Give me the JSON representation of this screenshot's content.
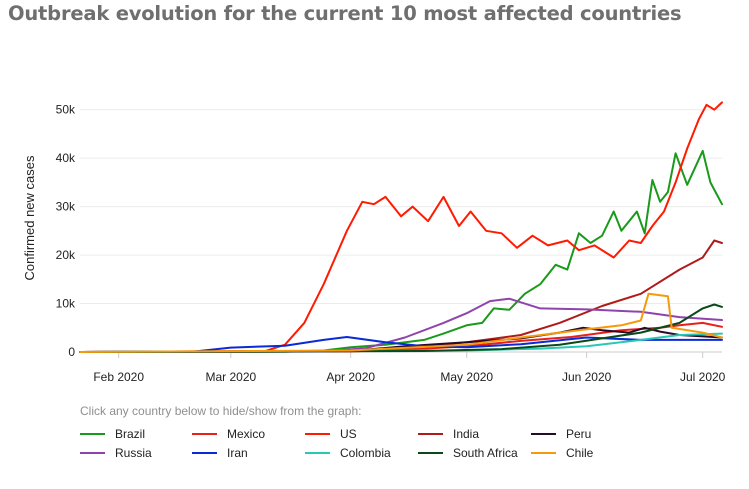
{
  "title": "Outbreak evolution for the current 10 most affected countries",
  "hint": "Click any country below to hide/show from the graph:",
  "chart_data": {
    "type": "line",
    "ylabel": "Confirmed new cases",
    "xlabel": "",
    "ylim": [
      0,
      52000
    ],
    "y_ticks": [
      0,
      10000,
      20000,
      30000,
      40000,
      50000
    ],
    "y_tick_labels": [
      "0",
      "10k",
      "20k",
      "30k",
      "40k",
      "50k"
    ],
    "x_start": "2020-01-22",
    "x_end": "2020-07-06",
    "x_ticks": [
      "2020-02-01",
      "2020-03-01",
      "2020-04-01",
      "2020-05-01",
      "2020-06-01",
      "2020-07-01"
    ],
    "x_tick_labels": [
      "Feb 2020",
      "Mar 2020",
      "Apr 2020",
      "May 2020",
      "Jun 2020",
      "Jul 2020"
    ],
    "grid": "horizontal",
    "legend_position": "bottom",
    "series": [
      {
        "name": "Brazil",
        "color": "#1a9a1a",
        "points": [
          [
            "2020-01-22",
            0
          ],
          [
            "2020-03-15",
            50
          ],
          [
            "2020-03-25",
            300
          ],
          [
            "2020-04-01",
            1000
          ],
          [
            "2020-04-10",
            1500
          ],
          [
            "2020-04-20",
            2500
          ],
          [
            "2020-04-25",
            3800
          ],
          [
            "2020-05-01",
            5500
          ],
          [
            "2020-05-05",
            6000
          ],
          [
            "2020-05-08",
            9000
          ],
          [
            "2020-05-12",
            8700
          ],
          [
            "2020-05-16",
            12000
          ],
          [
            "2020-05-20",
            14000
          ],
          [
            "2020-05-24",
            18000
          ],
          [
            "2020-05-27",
            17000
          ],
          [
            "2020-05-30",
            24500
          ],
          [
            "2020-06-02",
            22500
          ],
          [
            "2020-06-05",
            24000
          ],
          [
            "2020-06-08",
            29000
          ],
          [
            "2020-06-10",
            25000
          ],
          [
            "2020-06-14",
            29000
          ],
          [
            "2020-06-16",
            24500
          ],
          [
            "2020-06-18",
            35500
          ],
          [
            "2020-06-20",
            31000
          ],
          [
            "2020-06-22",
            33000
          ],
          [
            "2020-06-24",
            41000
          ],
          [
            "2020-06-27",
            34500
          ],
          [
            "2020-07-01",
            41500
          ],
          [
            "2020-07-03",
            35000
          ],
          [
            "2020-07-06",
            30500
          ]
        ]
      },
      {
        "name": "Mexico",
        "color": "#e8201a",
        "points": [
          [
            "2020-01-22",
            0
          ],
          [
            "2020-04-01",
            100
          ],
          [
            "2020-04-20",
            700
          ],
          [
            "2020-05-01",
            1200
          ],
          [
            "2020-05-15",
            2300
          ],
          [
            "2020-05-28",
            3100
          ],
          [
            "2020-06-10",
            4500
          ],
          [
            "2020-06-20",
            5000
          ],
          [
            "2020-06-25",
            5500
          ],
          [
            "2020-07-01",
            6000
          ],
          [
            "2020-07-06",
            5200
          ]
        ]
      },
      {
        "name": "US",
        "color": "#ff1a00",
        "points": [
          [
            "2020-01-22",
            0
          ],
          [
            "2020-03-10",
            200
          ],
          [
            "2020-03-15",
            1500
          ],
          [
            "2020-03-20",
            6000
          ],
          [
            "2020-03-25",
            14000
          ],
          [
            "2020-03-31",
            25000
          ],
          [
            "2020-04-04",
            31000
          ],
          [
            "2020-04-07",
            30500
          ],
          [
            "2020-04-10",
            32000
          ],
          [
            "2020-04-14",
            28000
          ],
          [
            "2020-04-17",
            30000
          ],
          [
            "2020-04-21",
            27000
          ],
          [
            "2020-04-25",
            32000
          ],
          [
            "2020-04-29",
            26000
          ],
          [
            "2020-05-02",
            29000
          ],
          [
            "2020-05-06",
            25000
          ],
          [
            "2020-05-10",
            24500
          ],
          [
            "2020-05-14",
            21500
          ],
          [
            "2020-05-18",
            24000
          ],
          [
            "2020-05-22",
            22000
          ],
          [
            "2020-05-27",
            23000
          ],
          [
            "2020-05-30",
            21000
          ],
          [
            "2020-06-03",
            22000
          ],
          [
            "2020-06-08",
            19500
          ],
          [
            "2020-06-12",
            23000
          ],
          [
            "2020-06-15",
            22500
          ],
          [
            "2020-06-18",
            26000
          ],
          [
            "2020-06-21",
            29000
          ],
          [
            "2020-06-24",
            35000
          ],
          [
            "2020-06-27",
            42000
          ],
          [
            "2020-06-30",
            48000
          ],
          [
            "2020-07-02",
            51000
          ],
          [
            "2020-07-04",
            50000
          ],
          [
            "2020-07-06",
            51500
          ]
        ]
      },
      {
        "name": "India",
        "color": "#b01a1a",
        "points": [
          [
            "2020-01-22",
            0
          ],
          [
            "2020-04-01",
            200
          ],
          [
            "2020-04-15",
            800
          ],
          [
            "2020-05-01",
            2000
          ],
          [
            "2020-05-15",
            3500
          ],
          [
            "2020-05-25",
            6000
          ],
          [
            "2020-06-05",
            9500
          ],
          [
            "2020-06-15",
            12000
          ],
          [
            "2020-06-25",
            17000
          ],
          [
            "2020-07-01",
            19500
          ],
          [
            "2020-07-04",
            23000
          ],
          [
            "2020-07-06",
            22500
          ]
        ]
      },
      {
        "name": "Peru",
        "color": "#2a0a2a",
        "points": [
          [
            "2020-01-22",
            0
          ],
          [
            "2020-04-01",
            200
          ],
          [
            "2020-04-15",
            1200
          ],
          [
            "2020-05-01",
            2000
          ],
          [
            "2020-05-15",
            2800
          ],
          [
            "2020-05-25",
            4000
          ],
          [
            "2020-05-31",
            5000
          ],
          [
            "2020-06-05",
            4500
          ],
          [
            "2020-06-12",
            4000
          ],
          [
            "2020-06-16",
            5000
          ],
          [
            "2020-06-20",
            4200
          ],
          [
            "2020-06-25",
            3500
          ],
          [
            "2020-07-06",
            3000
          ]
        ]
      },
      {
        "name": "Russia",
        "color": "#8e44ad",
        "points": [
          [
            "2020-01-22",
            0
          ],
          [
            "2020-03-25",
            100
          ],
          [
            "2020-04-05",
            800
          ],
          [
            "2020-04-15",
            3000
          ],
          [
            "2020-04-25",
            6000
          ],
          [
            "2020-05-01",
            8000
          ],
          [
            "2020-05-07",
            10500
          ],
          [
            "2020-05-12",
            11000
          ],
          [
            "2020-05-20",
            9000
          ],
          [
            "2020-06-01",
            8800
          ],
          [
            "2020-06-15",
            8300
          ],
          [
            "2020-06-25",
            7200
          ],
          [
            "2020-07-06",
            6600
          ]
        ]
      },
      {
        "name": "Iran",
        "color": "#0a2ad6",
        "points": [
          [
            "2020-01-22",
            0
          ],
          [
            "2020-02-20",
            50
          ],
          [
            "2020-03-01",
            900
          ],
          [
            "2020-03-15",
            1300
          ],
          [
            "2020-03-25",
            2500
          ],
          [
            "2020-03-31",
            3100
          ],
          [
            "2020-04-10",
            2000
          ],
          [
            "2020-04-20",
            1200
          ],
          [
            "2020-05-01",
            1000
          ],
          [
            "2020-05-15",
            1600
          ],
          [
            "2020-06-01",
            3000
          ],
          [
            "2020-06-15",
            2500
          ],
          [
            "2020-07-06",
            2500
          ]
        ]
      },
      {
        "name": "Colombia",
        "color": "#2ac7b4",
        "points": [
          [
            "2020-01-22",
            0
          ],
          [
            "2020-05-01",
            300
          ],
          [
            "2020-05-20",
            700
          ],
          [
            "2020-06-01",
            1200
          ],
          [
            "2020-06-15",
            2500
          ],
          [
            "2020-06-25",
            3500
          ],
          [
            "2020-07-06",
            3800
          ]
        ]
      },
      {
        "name": "South Africa",
        "color": "#0a4a1a",
        "points": [
          [
            "2020-01-22",
            0
          ],
          [
            "2020-04-20",
            200
          ],
          [
            "2020-05-10",
            600
          ],
          [
            "2020-05-25",
            1500
          ],
          [
            "2020-06-05",
            2800
          ],
          [
            "2020-06-15",
            4000
          ],
          [
            "2020-06-25",
            6000
          ],
          [
            "2020-07-01",
            9000
          ],
          [
            "2020-07-04",
            9800
          ],
          [
            "2020-07-06",
            9300
          ]
        ]
      },
      {
        "name": "Chile",
        "color": "#f59a0a",
        "points": [
          [
            "2020-01-22",
            0
          ],
          [
            "2020-04-01",
            300
          ],
          [
            "2020-05-01",
            1500
          ],
          [
            "2020-05-15",
            3000
          ],
          [
            "2020-05-30",
            4500
          ],
          [
            "2020-06-10",
            5500
          ],
          [
            "2020-06-15",
            6500
          ],
          [
            "2020-06-17",
            12000
          ],
          [
            "2020-06-22",
            11500
          ],
          [
            "2020-06-23",
            5000
          ],
          [
            "2020-07-01",
            4000
          ],
          [
            "2020-07-06",
            3000
          ]
        ]
      }
    ]
  }
}
